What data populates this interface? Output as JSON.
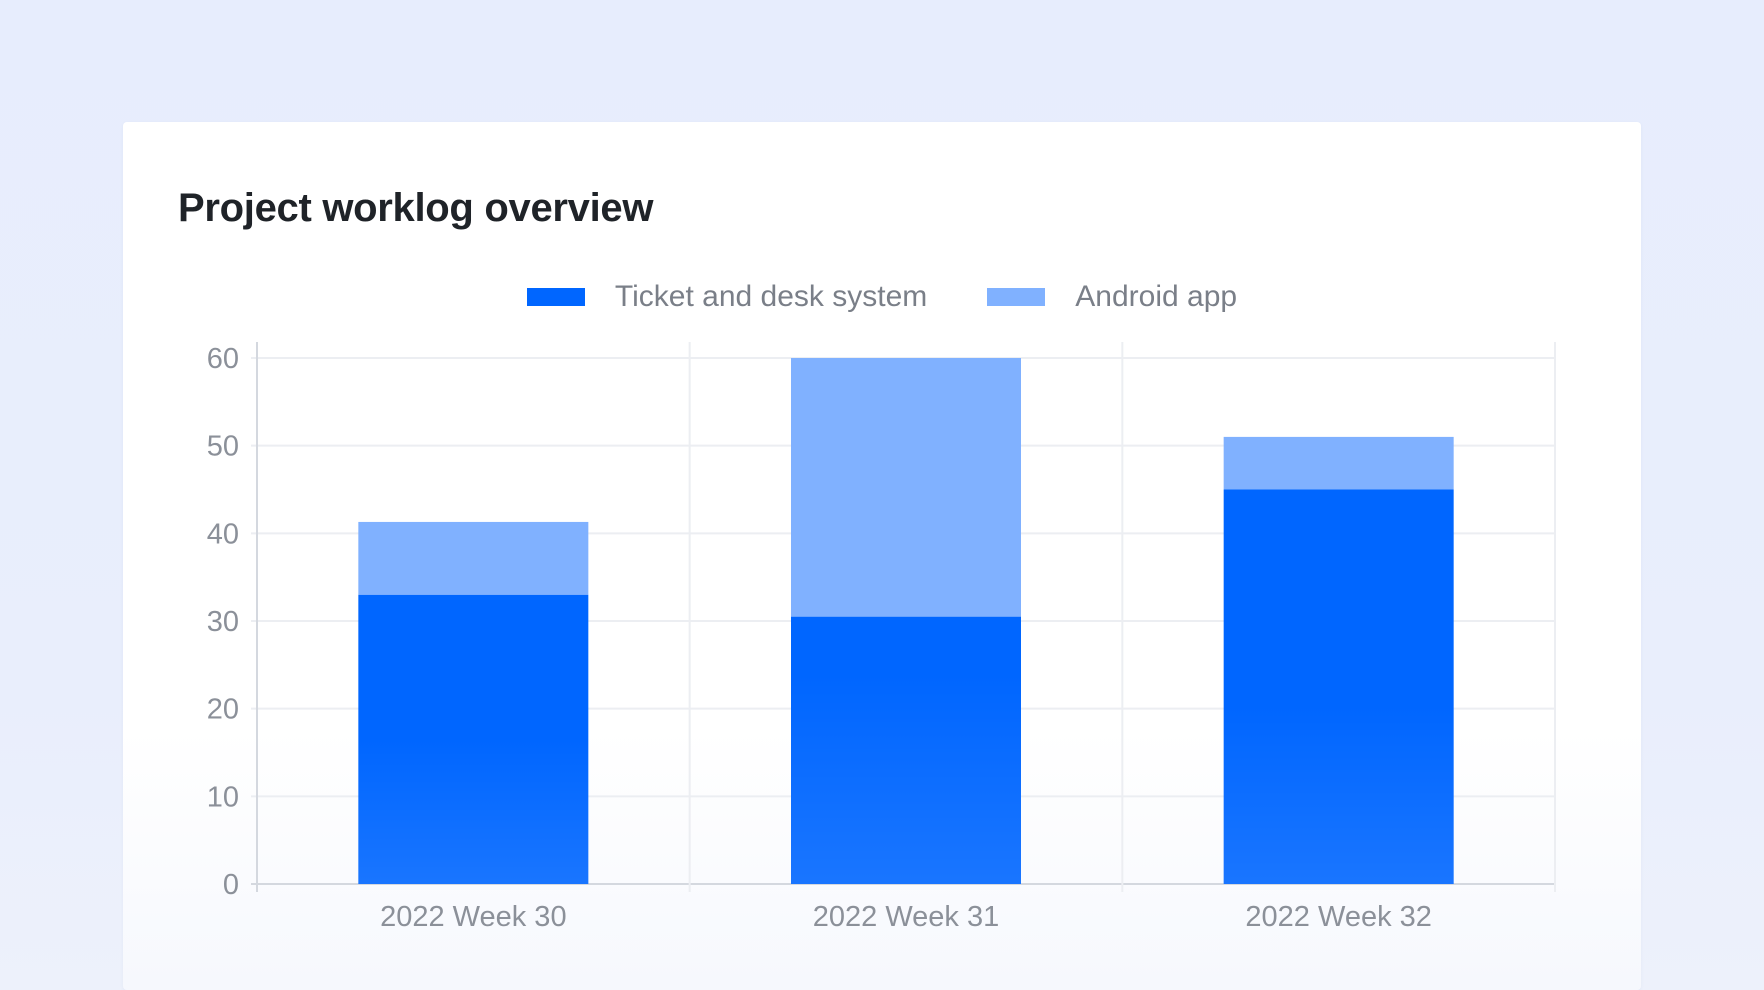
{
  "chart_data": {
    "type": "bar",
    "stacked": true,
    "title": "Project worklog overview",
    "categories": [
      "2022 Week 30",
      "2022 Week 31",
      "2022 Week 32"
    ],
    "series": [
      {
        "name": "Ticket and desk system",
        "values": [
          33,
          30.5,
          45
        ],
        "color": "#0066ff"
      },
      {
        "name": "Android app",
        "values": [
          8.3,
          29.5,
          6
        ],
        "color": "#80b1ff"
      }
    ],
    "ylim": [
      0,
      60
    ],
    "yticks": [
      0,
      10,
      20,
      30,
      40,
      50,
      60
    ],
    "grid": true,
    "legend_position": "top-center",
    "xlabel": "",
    "ylabel": ""
  }
}
